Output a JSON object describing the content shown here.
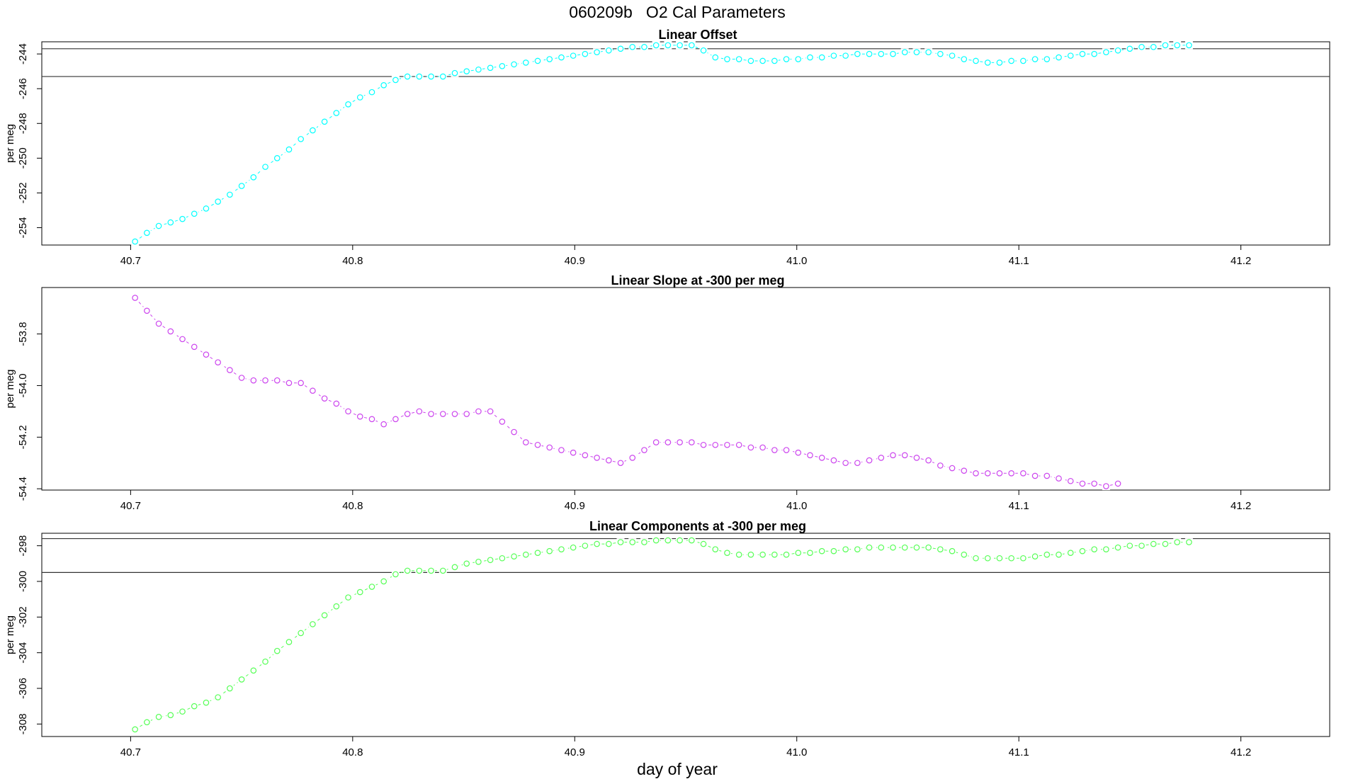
{
  "figure": {
    "title": "060209b   O2 Cal Parameters",
    "xlabel": "day of year"
  },
  "chart_data": [
    {
      "type": "scatter",
      "title": "Linear Offset",
      "ylabel": "per meg",
      "color": "#00ffff",
      "xlim": [
        40.66,
        41.24
      ],
      "ylim": [
        -255.0,
        -243.3
      ],
      "xticks": [
        "40.7",
        "40.8",
        "40.9",
        "41.0",
        "41.1",
        "41.2"
      ],
      "xtick_values": [
        40.7,
        40.8,
        40.9,
        41.0,
        41.1,
        41.2
      ],
      "yticks": [
        "-254",
        "-252",
        "-250",
        "-248",
        "-246",
        "-244"
      ],
      "ytick_values": [
        -254,
        -252,
        -250,
        -248,
        -246,
        -244
      ],
      "hlines": [
        -243.7,
        -245.3
      ],
      "x_start": 40.702,
      "x_step": 0.005333,
      "values": [
        -254.8,
        -254.3,
        -253.9,
        -253.7,
        -253.5,
        -253.2,
        -252.9,
        -252.5,
        -252.1,
        -251.6,
        -251.1,
        -250.5,
        -250.0,
        -249.5,
        -248.9,
        -248.4,
        -247.9,
        -247.4,
        -246.9,
        -246.5,
        -246.2,
        -245.8,
        -245.5,
        -245.3,
        -245.3,
        -245.3,
        -245.3,
        -245.1,
        -245.0,
        -244.9,
        -244.8,
        -244.7,
        -244.6,
        -244.5,
        -244.4,
        -244.3,
        -244.2,
        -244.1,
        -244.0,
        -243.9,
        -243.8,
        -243.7,
        -243.6,
        -243.6,
        -243.5,
        -243.5,
        -243.5,
        -243.5,
        -243.8,
        -244.2,
        -244.3,
        -244.3,
        -244.4,
        -244.4,
        -244.4,
        -244.3,
        -244.3,
        -244.2,
        -244.2,
        -244.1,
        -244.1,
        -244.0,
        -244.0,
        -244.0,
        -244.0,
        -243.9,
        -243.9,
        -243.9,
        -244.0,
        -244.1,
        -244.3,
        -244.4,
        -244.5,
        -244.5,
        -244.4,
        -244.4,
        -244.3,
        -244.3,
        -244.2,
        -244.1,
        -244.0,
        -244.0,
        -243.9,
        -243.8,
        -243.7,
        -243.6,
        -243.6,
        -243.5,
        -243.5,
        -243.5
      ]
    },
    {
      "type": "scatter",
      "title": "Linear Slope at -300 per meg",
      "ylabel": "per meg",
      "color": "#cc44ee",
      "xlim": [
        40.66,
        41.24
      ],
      "ylim": [
        -54.405,
        -53.62
      ],
      "xticks": [
        "40.7",
        "40.8",
        "40.9",
        "41.0",
        "41.1",
        "41.2"
      ],
      "xtick_values": [
        40.7,
        40.8,
        40.9,
        41.0,
        41.1,
        41.2
      ],
      "yticks": [
        "-54.4",
        "-54.2",
        "-54.0",
        "-53.8"
      ],
      "ytick_values": [
        -54.4,
        -54.2,
        -54.0,
        -53.8
      ],
      "hlines": [],
      "x_start": 40.702,
      "x_step": 0.005333,
      "values": [
        -53.66,
        -53.71,
        -53.76,
        -53.79,
        -53.82,
        -53.85,
        -53.88,
        -53.91,
        -53.94,
        -53.97,
        -53.98,
        -53.98,
        -53.98,
        -53.99,
        -53.99,
        -54.02,
        -54.05,
        -54.07,
        -54.1,
        -54.12,
        -54.13,
        -54.15,
        -54.13,
        -54.11,
        -54.1,
        -54.11,
        -54.11,
        -54.11,
        -54.11,
        -54.1,
        -54.1,
        -54.14,
        -54.18,
        -54.22,
        -54.23,
        -54.24,
        -54.25,
        -54.26,
        -54.27,
        -54.28,
        -54.29,
        -54.3,
        -54.28,
        -54.25,
        -54.22,
        -54.22,
        -54.22,
        -54.22,
        -54.23,
        -54.23,
        -54.23,
        -54.23,
        -54.24,
        -54.24,
        -54.25,
        -54.25,
        -54.26,
        -54.27,
        -54.28,
        -54.29,
        -54.3,
        -54.3,
        -54.29,
        -54.28,
        -54.27,
        -54.27,
        -54.28,
        -54.29,
        -54.31,
        -54.32,
        -54.33,
        -54.34,
        -54.34,
        -54.34,
        -54.34,
        -54.34,
        -54.35,
        -54.35,
        -54.36,
        -54.37,
        -54.38,
        -54.38,
        -54.39,
        -54.38
      ]
    },
    {
      "type": "scatter",
      "title": "Linear Components at -300 per meg",
      "ylabel": "per meg",
      "color": "#55ff55",
      "xlim": [
        40.66,
        41.24
      ],
      "ylim": [
        -308.7,
        -297.3
      ],
      "xticks": [
        "40.7",
        "40.8",
        "40.9",
        "41.0",
        "41.1",
        "41.2"
      ],
      "xtick_values": [
        40.7,
        40.8,
        40.9,
        41.0,
        41.1,
        41.2
      ],
      "yticks": [
        "-308",
        "-306",
        "-304",
        "-302",
        "-300",
        "-298"
      ],
      "ytick_values": [
        -308,
        -306,
        -304,
        -302,
        -300,
        -298
      ],
      "hlines": [
        -297.6,
        -299.5
      ],
      "x_start": 40.702,
      "x_step": 0.005333,
      "values": [
        -308.3,
        -307.9,
        -307.6,
        -307.5,
        -307.3,
        -307.0,
        -306.8,
        -306.5,
        -306.0,
        -305.5,
        -305.0,
        -304.5,
        -303.9,
        -303.4,
        -302.9,
        -302.4,
        -301.9,
        -301.4,
        -300.9,
        -300.6,
        -300.3,
        -300.0,
        -299.6,
        -299.4,
        -299.4,
        -299.4,
        -299.4,
        -299.2,
        -299.0,
        -298.9,
        -298.8,
        -298.7,
        -298.6,
        -298.5,
        -298.4,
        -298.3,
        -298.2,
        -298.1,
        -298.0,
        -297.9,
        -297.9,
        -297.8,
        -297.8,
        -297.8,
        -297.7,
        -297.7,
        -297.7,
        -297.7,
        -297.9,
        -298.2,
        -298.4,
        -298.5,
        -298.5,
        -298.5,
        -298.5,
        -298.5,
        -298.4,
        -298.4,
        -298.3,
        -298.3,
        -298.2,
        -298.2,
        -298.1,
        -298.1,
        -298.1,
        -298.1,
        -298.1,
        -298.1,
        -298.2,
        -298.3,
        -298.5,
        -298.7,
        -298.7,
        -298.7,
        -298.7,
        -298.7,
        -298.6,
        -298.5,
        -298.5,
        -298.4,
        -298.3,
        -298.2,
        -298.2,
        -298.1,
        -298.0,
        -298.0,
        -297.9,
        -297.9,
        -297.8,
        -297.8
      ]
    }
  ]
}
